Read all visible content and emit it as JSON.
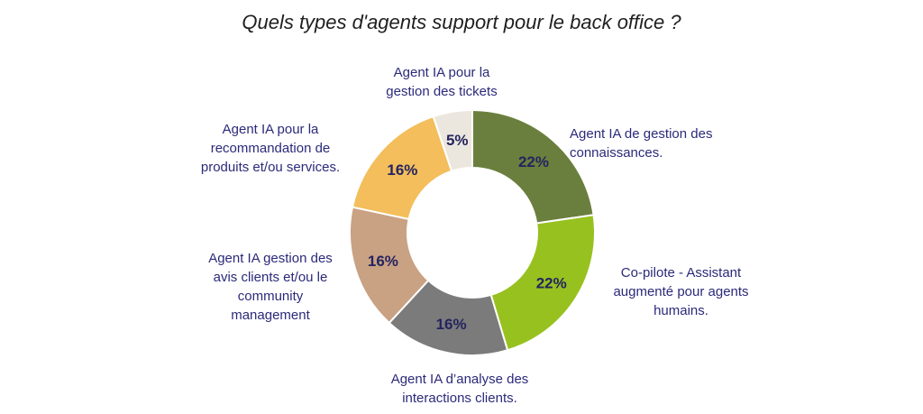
{
  "title": "Quels types d'agents support pour le back office ?",
  "chart_data": {
    "type": "pie",
    "title": "Quels types d'agents support pour le back office ?",
    "slices": [
      {
        "label": "Agent IA de gestion des\nconnaissances.",
        "value": 22,
        "display": "22%",
        "color": "#6a7f3d"
      },
      {
        "label": "Co-pilote - Assistant\naugmenté pour agents\nhumains.",
        "value": 22,
        "display": "22%",
        "color": "#97c11f"
      },
      {
        "label": "Agent IA d’analyse des\ninteractions clients.",
        "value": 16,
        "display": "16%",
        "color": "#7b7b7b"
      },
      {
        "label": "Agent IA gestion des\navis clients et/ou le\ncommunity\nmanagement",
        "value": 16,
        "display": "16%",
        "color": "#c9a183"
      },
      {
        "label": "Agent IA pour la\nrecommandation de\nproduits et/ou services.",
        "value": 16,
        "display": "16%",
        "color": "#f3be5b"
      },
      {
        "label": "Agent IA pour la\ngestion des tickets",
        "value": 5,
        "display": "5%",
        "color": "#ece7de"
      }
    ]
  }
}
